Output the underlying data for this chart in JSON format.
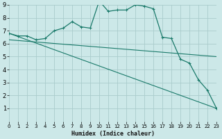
{
  "xlabel": "Humidex (Indice chaleur)",
  "bg_color": "#cce8e8",
  "grid_color": "#aacccc",
  "line_color": "#1a7a6a",
  "xmin": 0,
  "xmax": 23,
  "ymin": 0,
  "ymax": 9,
  "x_ticks": [
    0,
    1,
    2,
    3,
    4,
    5,
    6,
    7,
    8,
    9,
    10,
    11,
    12,
    13,
    14,
    15,
    16,
    17,
    18,
    19,
    20,
    21,
    22,
    23
  ],
  "y_ticks": [
    1,
    2,
    3,
    4,
    5,
    6,
    7,
    8,
    9
  ],
  "line1_x": [
    0,
    1,
    2,
    3,
    4,
    5,
    6,
    7,
    8,
    9,
    10,
    11,
    12,
    13,
    14,
    15,
    16,
    17,
    18,
    19,
    20,
    21,
    22,
    23
  ],
  "line1_y": [
    6.8,
    6.6,
    6.6,
    6.3,
    6.4,
    7.0,
    7.2,
    7.7,
    7.3,
    7.2,
    9.3,
    8.5,
    8.6,
    8.6,
    9.0,
    8.9,
    8.7,
    6.5,
    6.4,
    4.8,
    4.5,
    3.2,
    2.4,
    1.0
  ],
  "line2_x": [
    0,
    23
  ],
  "line2_y": [
    6.8,
    1.0
  ],
  "line3_x": [
    0,
    23
  ],
  "line3_y": [
    6.3,
    5.0
  ],
  "xlabel_fontsize": 6,
  "xlabel_weight": "bold",
  "tick_fontsize_x": 5,
  "tick_fontsize_y": 6
}
